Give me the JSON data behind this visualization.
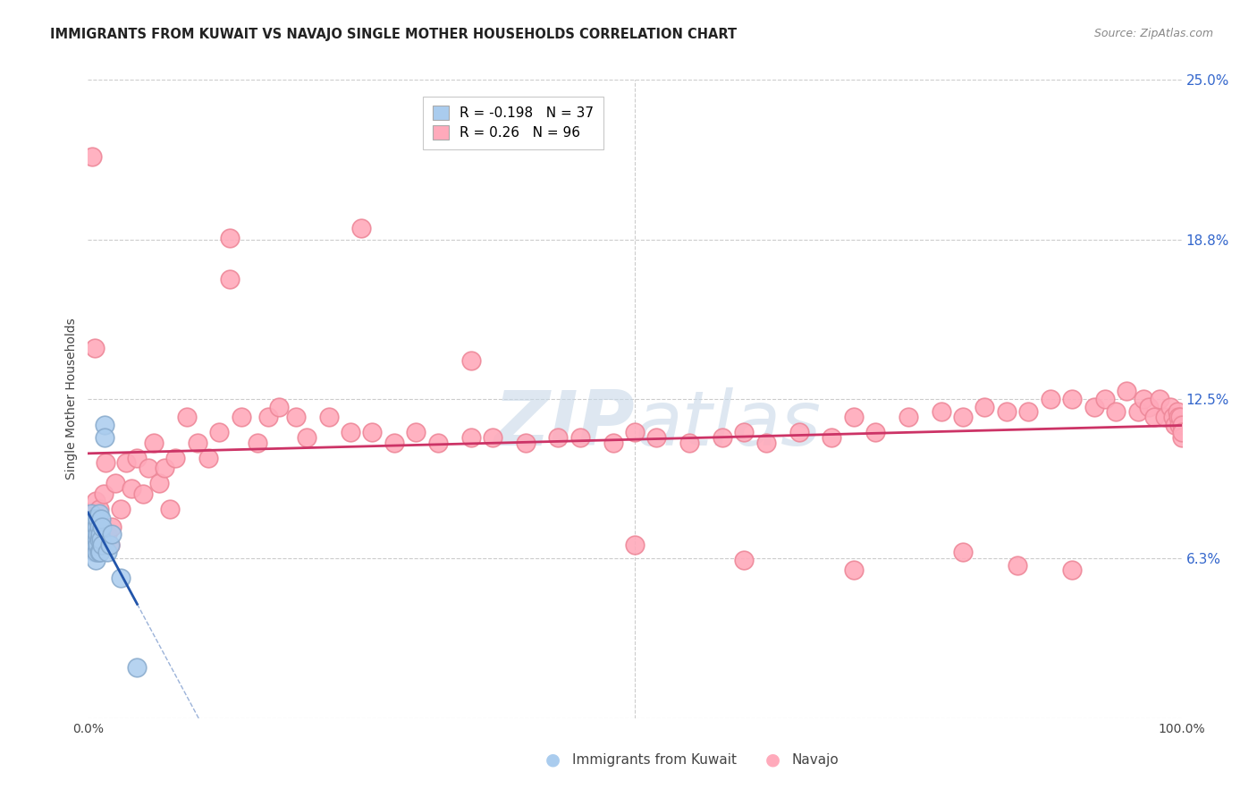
{
  "title": "IMMIGRANTS FROM KUWAIT VS NAVAJO SINGLE MOTHER HOUSEHOLDS CORRELATION CHART",
  "source": "Source: ZipAtlas.com",
  "ylabel": "Single Mother Households",
  "xlim": [
    0,
    1.0
  ],
  "ylim": [
    0,
    0.25
  ],
  "yticks": [
    0.0,
    0.0625,
    0.125,
    0.1875,
    0.25
  ],
  "ytick_labels": [
    "",
    "6.3%",
    "12.5%",
    "18.8%",
    "25.0%"
  ],
  "kuwait_R": -0.198,
  "kuwait_N": 37,
  "navajo_R": 0.26,
  "navajo_N": 96,
  "kuwait_color": "#aaccee",
  "navajo_color": "#ffaabb",
  "kuwait_edge_color": "#88aacc",
  "navajo_edge_color": "#ee8899",
  "kuwait_line_color": "#2255aa",
  "navajo_line_color": "#cc3366",
  "background_color": "#ffffff",
  "grid_color": "#cccccc",
  "watermark_color": "#c8d8e8",
  "title_color": "#222222",
  "source_color": "#888888",
  "axis_color": "#444444",
  "right_label_color": "#3366cc",
  "kuwait_x": [
    0.002,
    0.003,
    0.003,
    0.004,
    0.004,
    0.005,
    0.005,
    0.006,
    0.006,
    0.006,
    0.007,
    0.007,
    0.007,
    0.007,
    0.008,
    0.008,
    0.008,
    0.009,
    0.009,
    0.009,
    0.01,
    0.01,
    0.01,
    0.01,
    0.011,
    0.011,
    0.012,
    0.012,
    0.013,
    0.013,
    0.015,
    0.015,
    0.018,
    0.02,
    0.022,
    0.03,
    0.045
  ],
  "kuwait_y": [
    0.075,
    0.07,
    0.08,
    0.068,
    0.075,
    0.072,
    0.078,
    0.065,
    0.07,
    0.076,
    0.062,
    0.068,
    0.072,
    0.078,
    0.065,
    0.07,
    0.075,
    0.068,
    0.072,
    0.078,
    0.065,
    0.07,
    0.075,
    0.08,
    0.065,
    0.072,
    0.07,
    0.078,
    0.068,
    0.075,
    0.115,
    0.11,
    0.065,
    0.068,
    0.072,
    0.055,
    0.02
  ],
  "navajo_x": [
    0.004,
    0.005,
    0.006,
    0.006,
    0.007,
    0.008,
    0.009,
    0.01,
    0.012,
    0.014,
    0.016,
    0.018,
    0.02,
    0.022,
    0.025,
    0.03,
    0.035,
    0.04,
    0.045,
    0.05,
    0.055,
    0.06,
    0.065,
    0.07,
    0.075,
    0.08,
    0.09,
    0.1,
    0.11,
    0.12,
    0.13,
    0.14,
    0.155,
    0.165,
    0.175,
    0.19,
    0.2,
    0.22,
    0.24,
    0.26,
    0.28,
    0.3,
    0.32,
    0.35,
    0.37,
    0.4,
    0.43,
    0.45,
    0.48,
    0.5,
    0.52,
    0.55,
    0.58,
    0.6,
    0.62,
    0.65,
    0.68,
    0.7,
    0.72,
    0.75,
    0.78,
    0.8,
    0.82,
    0.84,
    0.86,
    0.88,
    0.9,
    0.92,
    0.93,
    0.94,
    0.95,
    0.96,
    0.965,
    0.97,
    0.975,
    0.98,
    0.985,
    0.99,
    0.992,
    0.994,
    0.996,
    0.997,
    0.998,
    0.999,
    1.0,
    1.0,
    1.0,
    0.13,
    0.25,
    0.35,
    0.5,
    0.6,
    0.7,
    0.8,
    0.85,
    0.9
  ],
  "navajo_y": [
    0.22,
    0.08,
    0.072,
    0.145,
    0.085,
    0.078,
    0.072,
    0.082,
    0.075,
    0.088,
    0.1,
    0.072,
    0.068,
    0.075,
    0.092,
    0.082,
    0.1,
    0.09,
    0.102,
    0.088,
    0.098,
    0.108,
    0.092,
    0.098,
    0.082,
    0.102,
    0.118,
    0.108,
    0.102,
    0.112,
    0.172,
    0.118,
    0.108,
    0.118,
    0.122,
    0.118,
    0.11,
    0.118,
    0.112,
    0.112,
    0.108,
    0.112,
    0.108,
    0.11,
    0.11,
    0.108,
    0.11,
    0.11,
    0.108,
    0.112,
    0.11,
    0.108,
    0.11,
    0.112,
    0.108,
    0.112,
    0.11,
    0.118,
    0.112,
    0.118,
    0.12,
    0.118,
    0.122,
    0.12,
    0.12,
    0.125,
    0.125,
    0.122,
    0.125,
    0.12,
    0.128,
    0.12,
    0.125,
    0.122,
    0.118,
    0.125,
    0.118,
    0.122,
    0.118,
    0.115,
    0.12,
    0.118,
    0.115,
    0.118,
    0.115,
    0.11,
    0.112,
    0.188,
    0.192,
    0.14,
    0.068,
    0.062,
    0.058,
    0.065,
    0.06,
    0.058
  ]
}
